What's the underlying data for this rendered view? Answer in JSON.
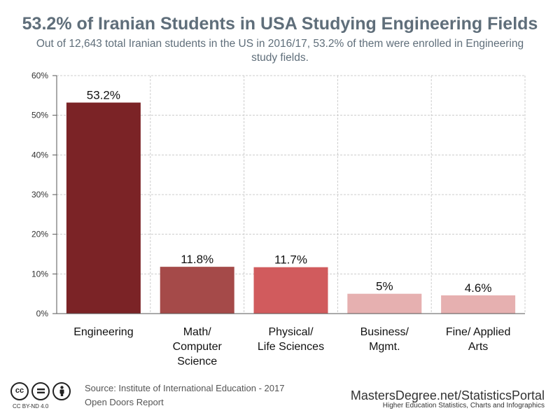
{
  "chart_data": {
    "type": "bar",
    "title": "53.2% of Iranian Students in USA Studying Engineering Fields",
    "subtitle": "Out of 12,643 total Iranian students in the US in 2016/17, 53.2% of them were enrolled in Engineering study fields.",
    "categories": [
      [
        "Engineering"
      ],
      [
        "Math/",
        "Computer",
        "Science"
      ],
      [
        "Physical/",
        "Life Sciences"
      ],
      [
        "Business/",
        "Mgmt."
      ],
      [
        "Fine/ Applied",
        "Arts"
      ]
    ],
    "values": [
      53.2,
      11.8,
      11.7,
      5,
      4.6
    ],
    "data_labels": [
      "53.2%",
      "11.8%",
      "11.7%",
      "5%",
      "4.6%"
    ],
    "bar_colors": [
      "#7b2326",
      "#a54a49",
      "#d15b5d",
      "#e6b0b0",
      "#e6b0b0"
    ],
    "ylim": [
      0,
      60
    ],
    "yticks": [
      0,
      10,
      20,
      30,
      40,
      50,
      60
    ],
    "ytick_labels": [
      "0%",
      "10%",
      "20%",
      "30%",
      "40%",
      "50%",
      "60%"
    ],
    "xlabel": "",
    "ylabel": "",
    "grid": true,
    "legend": "none"
  },
  "footer": {
    "source_line1": "Source: Institute of International Education - 2017",
    "source_line2": "Open Doors Report",
    "license": "CC BY-ND 4.0",
    "license_icons": [
      "cc-icon",
      "nd-icon",
      "by-icon"
    ],
    "brand": "MastersDegree.net/StatisticsPortal",
    "tagline": "Higher Education Statistics, Charts and Infographics"
  }
}
